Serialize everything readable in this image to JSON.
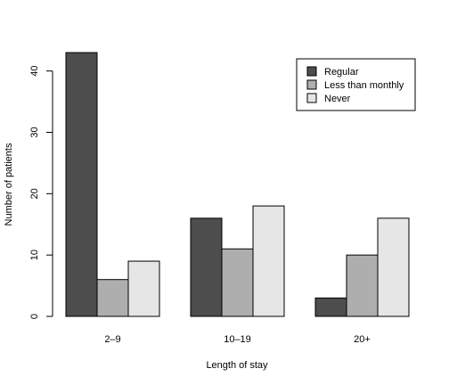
{
  "chart_data": {
    "type": "bar",
    "categories": [
      "2–9",
      "10–19",
      "20+"
    ],
    "series": [
      {
        "name": "Regular",
        "values": [
          43,
          16,
          3
        ],
        "color": "#4d4d4d"
      },
      {
        "name": "Less than monthly",
        "values": [
          6,
          11,
          10
        ],
        "color": "#aeaeae"
      },
      {
        "name": "Never",
        "values": [
          9,
          18,
          16
        ],
        "color": "#e6e6e6"
      }
    ],
    "title": "",
    "xlabel": "Length of stay",
    "ylabel": "Number of patients",
    "ylim": [
      0,
      43
    ],
    "yticks": [
      0,
      10,
      20,
      30,
      40
    ],
    "grid": false,
    "legend_position": "top-right"
  }
}
